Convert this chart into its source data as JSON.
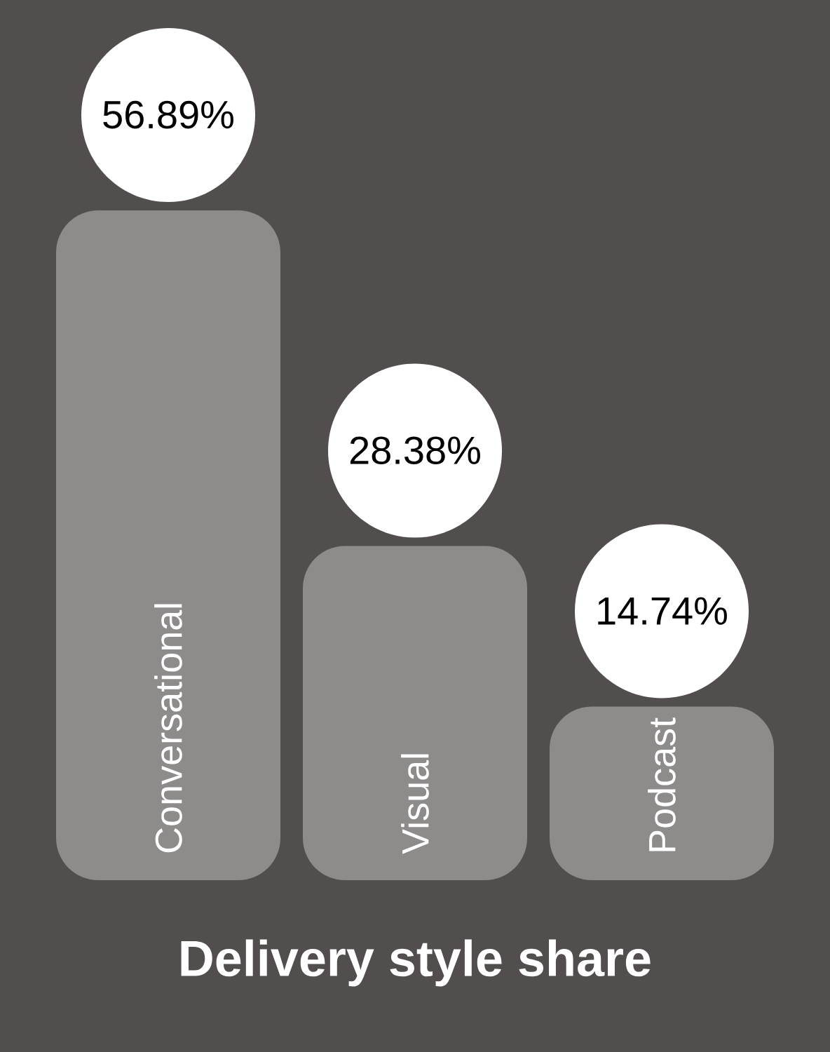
{
  "chart_data": {
    "type": "bar",
    "title": "Delivery style share",
    "categories": [
      "Conversational",
      "Visual",
      "Podcast"
    ],
    "values": [
      56.89,
      28.38,
      14.74
    ],
    "value_labels": [
      "56.89%",
      "28.38%",
      "14.74%"
    ],
    "color": "#8e8b8b"
  }
}
